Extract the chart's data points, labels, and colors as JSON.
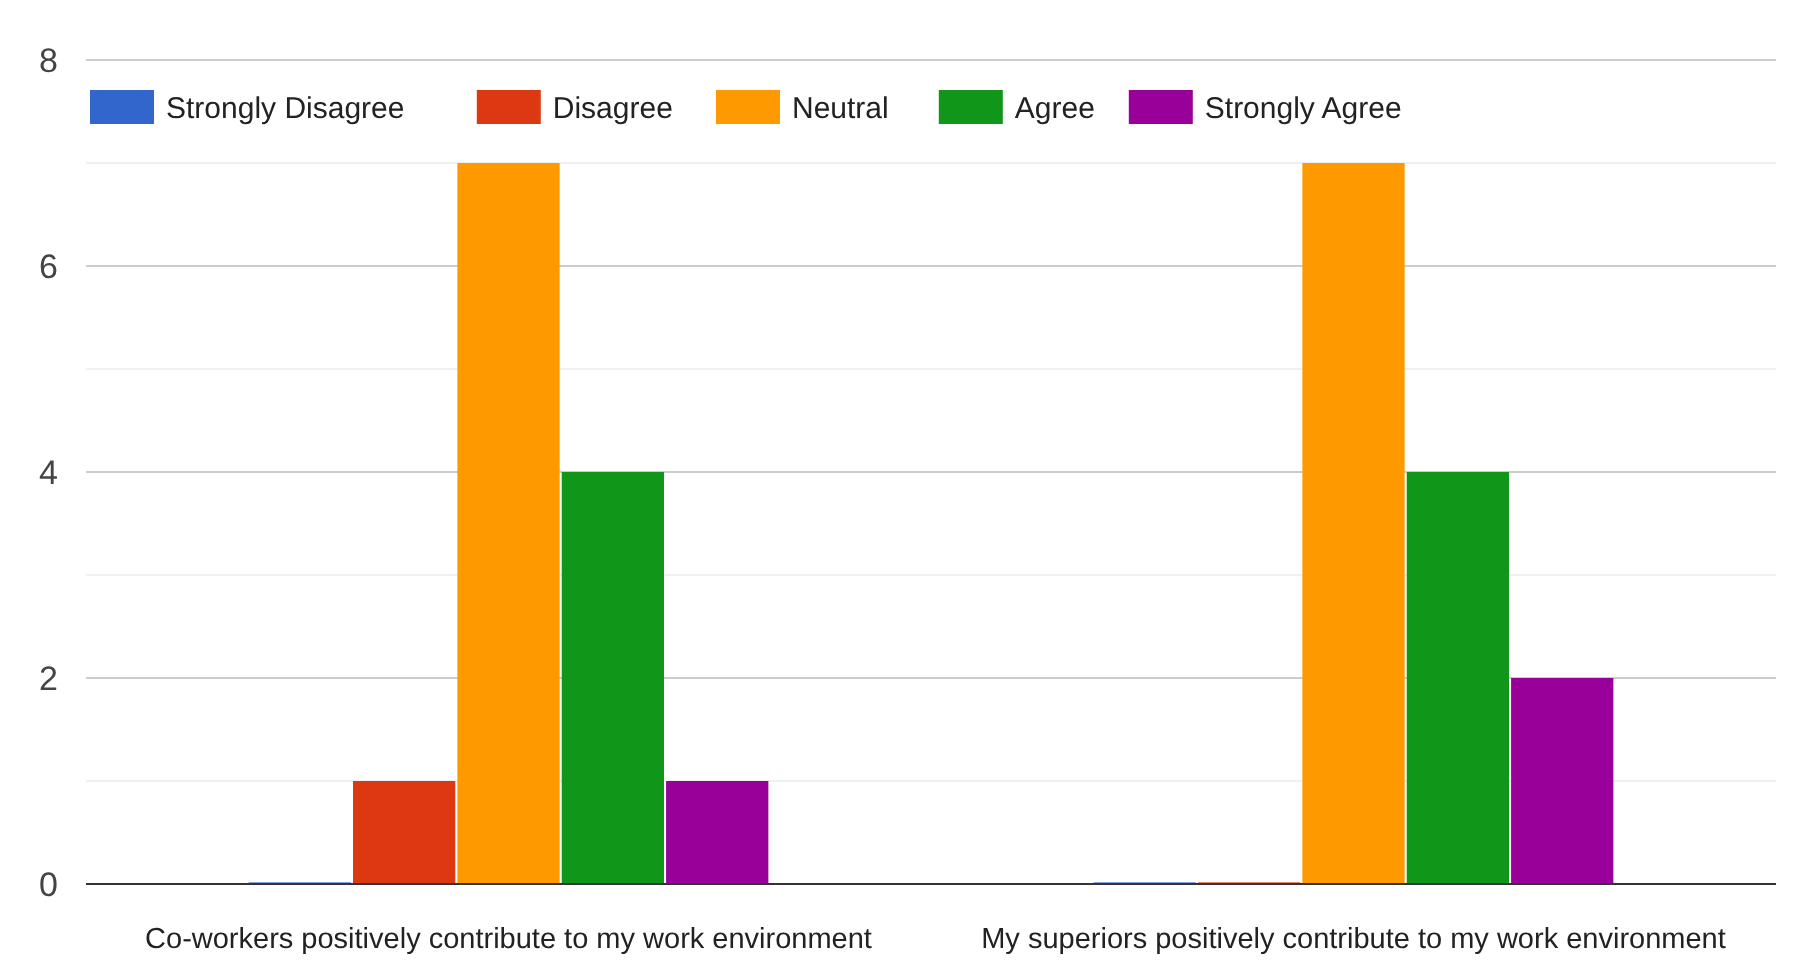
{
  "chart_data": {
    "type": "bar",
    "categories": [
      "Co-workers positively contribute to my work environment",
      "My superiors positively contribute to my work environment"
    ],
    "series": [
      {
        "name": "Strongly Disagree",
        "color": "#3366cc",
        "values": [
          0,
          0
        ]
      },
      {
        "name": "Disagree",
        "color": "#dc3912",
        "values": [
          1,
          0
        ]
      },
      {
        "name": "Neutral",
        "color": "#ff9900",
        "values": [
          7,
          7
        ]
      },
      {
        "name": "Agree",
        "color": "#109618",
        "values": [
          4,
          4
        ]
      },
      {
        "name": "Strongly Agree",
        "color": "#990099",
        "values": [
          1,
          2
        ]
      }
    ],
    "ylim": [
      0,
      8
    ],
    "yticks": [
      0,
      {
        "value": 1,
        "label": null
      },
      2,
      {
        "value": 3,
        "label": null
      },
      4,
      {
        "value": 5,
        "label": null
      },
      6,
      {
        "value": 7,
        "label": null
      },
      8
    ],
    "grid": true,
    "legend": "top left"
  }
}
